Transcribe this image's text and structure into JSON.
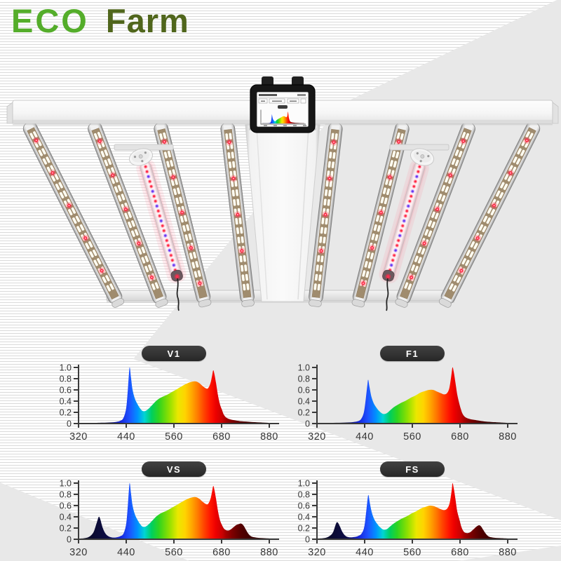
{
  "logo": {
    "eco": "ECO",
    "farm": "Farm"
  },
  "colors": {
    "logo_eco": "#54ad2a",
    "logo_farm": "#50661c",
    "pill_bg": "#323232",
    "pill_text": "#ffffff",
    "axis": "#3a3a3a",
    "background": "#ffffff",
    "stripe": "#dadada",
    "panel_gray": "#e8e8e8",
    "led_red": "#ff2b47",
    "tube_purple": "#6a3bf0"
  },
  "fixture": {
    "led_bars": 8,
    "uv_ir_tubes": 2,
    "has_controller_display": true
  },
  "chart_defaults": {
    "y_values": [
      0,
      0.2,
      0.4,
      0.6,
      0.8,
      1.0
    ],
    "y_tick_labels": [
      "0",
      "0.2",
      "0.4",
      "0.6",
      "0.8",
      "1.0"
    ],
    "x_ticks": [
      320,
      440,
      560,
      680,
      880
    ],
    "x_tick_labels": [
      "320",
      "440",
      "560",
      "680",
      "880"
    ],
    "ylim": [
      0,
      1
    ],
    "grid": false,
    "spectrum_gradient_stops": [
      [
        320,
        "#08081c"
      ],
      [
        395,
        "#0d0d46"
      ],
      [
        425,
        "#1525d8"
      ],
      [
        448,
        "#1e52ff"
      ],
      [
        468,
        "#0090ff"
      ],
      [
        486,
        "#00d4d4"
      ],
      [
        504,
        "#00cf5e"
      ],
      [
        522,
        "#2ed41f"
      ],
      [
        548,
        "#90e000"
      ],
      [
        570,
        "#eae800"
      ],
      [
        588,
        "#ffd400"
      ],
      [
        604,
        "#ffaa00"
      ],
      [
        620,
        "#ff7a00"
      ],
      [
        636,
        "#ff4400"
      ],
      [
        652,
        "#ff1500"
      ],
      [
        665,
        "#ee0000"
      ],
      [
        682,
        "#c90202"
      ],
      [
        700,
        "#a30000"
      ],
      [
        725,
        "#7d0000"
      ],
      [
        760,
        "#550000"
      ],
      [
        810,
        "#380000"
      ],
      [
        880,
        "#250000"
      ]
    ]
  },
  "chart_data": [
    {
      "label": "V1",
      "type": "area",
      "points": [
        [
          320,
          0.01
        ],
        [
          350,
          0.01
        ],
        [
          380,
          0.015
        ],
        [
          400,
          0.02
        ],
        [
          415,
          0.03
        ],
        [
          425,
          0.05
        ],
        [
          433,
          0.1
        ],
        [
          440,
          0.28
        ],
        [
          444,
          0.6
        ],
        [
          447,
          0.9
        ],
        [
          449,
          1.0
        ],
        [
          452,
          0.82
        ],
        [
          456,
          0.6
        ],
        [
          462,
          0.44
        ],
        [
          468,
          0.35
        ],
        [
          474,
          0.28
        ],
        [
          480,
          0.23
        ],
        [
          486,
          0.22
        ],
        [
          492,
          0.24
        ],
        [
          500,
          0.29
        ],
        [
          508,
          0.35
        ],
        [
          516,
          0.41
        ],
        [
          524,
          0.45
        ],
        [
          532,
          0.48
        ],
        [
          542,
          0.51
        ],
        [
          552,
          0.55
        ],
        [
          562,
          0.59
        ],
        [
          574,
          0.64
        ],
        [
          586,
          0.69
        ],
        [
          598,
          0.73
        ],
        [
          608,
          0.75
        ],
        [
          616,
          0.75
        ],
        [
          624,
          0.72
        ],
        [
          632,
          0.67
        ],
        [
          640,
          0.63
        ],
        [
          646,
          0.63
        ],
        [
          652,
          0.72
        ],
        [
          656,
          0.85
        ],
        [
          659,
          0.95
        ],
        [
          662,
          0.88
        ],
        [
          666,
          0.72
        ],
        [
          671,
          0.5
        ],
        [
          676,
          0.34
        ],
        [
          682,
          0.24
        ],
        [
          688,
          0.17
        ],
        [
          696,
          0.12
        ],
        [
          706,
          0.09
        ],
        [
          720,
          0.07
        ],
        [
          740,
          0.055
        ],
        [
          765,
          0.04
        ],
        [
          800,
          0.03
        ],
        [
          840,
          0.02
        ],
        [
          880,
          0.012
        ]
      ]
    },
    {
      "label": "F1",
      "type": "area",
      "points": [
        [
          320,
          0.01
        ],
        [
          360,
          0.012
        ],
        [
          390,
          0.018
        ],
        [
          410,
          0.025
        ],
        [
          422,
          0.04
        ],
        [
          431,
          0.08
        ],
        [
          438,
          0.2
        ],
        [
          443,
          0.45
        ],
        [
          447,
          0.7
        ],
        [
          449,
          0.78
        ],
        [
          452,
          0.66
        ],
        [
          457,
          0.48
        ],
        [
          463,
          0.36
        ],
        [
          470,
          0.28
        ],
        [
          477,
          0.22
        ],
        [
          484,
          0.18
        ],
        [
          490,
          0.17
        ],
        [
          497,
          0.19
        ],
        [
          505,
          0.24
        ],
        [
          513,
          0.29
        ],
        [
          522,
          0.33
        ],
        [
          532,
          0.37
        ],
        [
          544,
          0.41
        ],
        [
          556,
          0.46
        ],
        [
          568,
          0.5
        ],
        [
          580,
          0.55
        ],
        [
          592,
          0.58
        ],
        [
          602,
          0.6
        ],
        [
          612,
          0.6
        ],
        [
          622,
          0.57
        ],
        [
          632,
          0.54
        ],
        [
          640,
          0.52
        ],
        [
          647,
          0.54
        ],
        [
          653,
          0.63
        ],
        [
          658,
          0.85
        ],
        [
          661,
          1.0
        ],
        [
          664,
          0.93
        ],
        [
          668,
          0.75
        ],
        [
          673,
          0.52
        ],
        [
          678,
          0.36
        ],
        [
          684,
          0.25
        ],
        [
          690,
          0.18
        ],
        [
          698,
          0.13
        ],
        [
          708,
          0.1
        ],
        [
          722,
          0.08
        ],
        [
          740,
          0.065
        ],
        [
          762,
          0.05
        ],
        [
          790,
          0.035
        ],
        [
          825,
          0.025
        ],
        [
          880,
          0.012
        ]
      ]
    },
    {
      "label": "VS",
      "type": "area",
      "points": [
        [
          320,
          0.01
        ],
        [
          336,
          0.02
        ],
        [
          348,
          0.05
        ],
        [
          358,
          0.13
        ],
        [
          366,
          0.3
        ],
        [
          371,
          0.4
        ],
        [
          375,
          0.35
        ],
        [
          381,
          0.2
        ],
        [
          388,
          0.1
        ],
        [
          396,
          0.05
        ],
        [
          406,
          0.03
        ],
        [
          416,
          0.035
        ],
        [
          425,
          0.055
        ],
        [
          433,
          0.1
        ],
        [
          440,
          0.28
        ],
        [
          444,
          0.6
        ],
        [
          447,
          0.9
        ],
        [
          449,
          1.0
        ],
        [
          452,
          0.82
        ],
        [
          456,
          0.6
        ],
        [
          462,
          0.44
        ],
        [
          468,
          0.35
        ],
        [
          474,
          0.28
        ],
        [
          480,
          0.23
        ],
        [
          486,
          0.22
        ],
        [
          492,
          0.24
        ],
        [
          500,
          0.29
        ],
        [
          508,
          0.35
        ],
        [
          516,
          0.41
        ],
        [
          524,
          0.45
        ],
        [
          532,
          0.48
        ],
        [
          542,
          0.51
        ],
        [
          552,
          0.55
        ],
        [
          562,
          0.59
        ],
        [
          574,
          0.64
        ],
        [
          586,
          0.69
        ],
        [
          598,
          0.73
        ],
        [
          608,
          0.75
        ],
        [
          616,
          0.75
        ],
        [
          624,
          0.72
        ],
        [
          632,
          0.67
        ],
        [
          640,
          0.63
        ],
        [
          646,
          0.63
        ],
        [
          652,
          0.72
        ],
        [
          656,
          0.85
        ],
        [
          659,
          0.95
        ],
        [
          662,
          0.88
        ],
        [
          666,
          0.72
        ],
        [
          671,
          0.5
        ],
        [
          676,
          0.34
        ],
        [
          682,
          0.25
        ],
        [
          690,
          0.19
        ],
        [
          700,
          0.16
        ],
        [
          712,
          0.16
        ],
        [
          726,
          0.2
        ],
        [
          740,
          0.25
        ],
        [
          752,
          0.27
        ],
        [
          762,
          0.28
        ],
        [
          771,
          0.25
        ],
        [
          781,
          0.18
        ],
        [
          792,
          0.1
        ],
        [
          805,
          0.05
        ],
        [
          825,
          0.03
        ],
        [
          852,
          0.02
        ],
        [
          880,
          0.012
        ]
      ]
    },
    {
      "label": "FS",
      "type": "area",
      "points": [
        [
          320,
          0.01
        ],
        [
          338,
          0.02
        ],
        [
          350,
          0.05
        ],
        [
          360,
          0.12
        ],
        [
          368,
          0.28
        ],
        [
          372,
          0.3
        ],
        [
          377,
          0.24
        ],
        [
          384,
          0.13
        ],
        [
          392,
          0.06
        ],
        [
          402,
          0.035
        ],
        [
          414,
          0.04
        ],
        [
          424,
          0.06
        ],
        [
          432,
          0.1
        ],
        [
          439,
          0.22
        ],
        [
          444,
          0.5
        ],
        [
          448,
          0.75
        ],
        [
          450,
          0.78
        ],
        [
          453,
          0.65
        ],
        [
          458,
          0.48
        ],
        [
          464,
          0.36
        ],
        [
          471,
          0.28
        ],
        [
          478,
          0.22
        ],
        [
          485,
          0.18
        ],
        [
          491,
          0.17
        ],
        [
          498,
          0.19
        ],
        [
          506,
          0.24
        ],
        [
          515,
          0.29
        ],
        [
          524,
          0.33
        ],
        [
          534,
          0.37
        ],
        [
          546,
          0.41
        ],
        [
          558,
          0.46
        ],
        [
          570,
          0.5
        ],
        [
          582,
          0.55
        ],
        [
          594,
          0.58
        ],
        [
          604,
          0.6
        ],
        [
          614,
          0.59
        ],
        [
          624,
          0.56
        ],
        [
          634,
          0.53
        ],
        [
          641,
          0.52
        ],
        [
          648,
          0.55
        ],
        [
          654,
          0.65
        ],
        [
          659,
          0.87
        ],
        [
          661,
          1.0
        ],
        [
          664,
          0.92
        ],
        [
          668,
          0.74
        ],
        [
          673,
          0.5
        ],
        [
          679,
          0.34
        ],
        [
          685,
          0.23
        ],
        [
          692,
          0.16
        ],
        [
          700,
          0.12
        ],
        [
          712,
          0.11
        ],
        [
          724,
          0.13
        ],
        [
          737,
          0.18
        ],
        [
          750,
          0.23
        ],
        [
          760,
          0.25
        ],
        [
          768,
          0.23
        ],
        [
          777,
          0.17
        ],
        [
          788,
          0.1
        ],
        [
          800,
          0.05
        ],
        [
          818,
          0.03
        ],
        [
          848,
          0.02
        ],
        [
          880,
          0.012
        ]
      ]
    }
  ]
}
